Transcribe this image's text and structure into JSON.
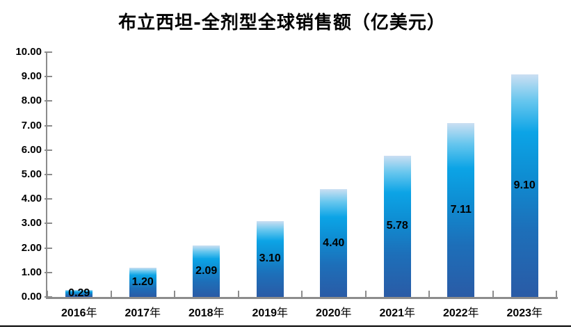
{
  "chart_data": {
    "type": "bar",
    "title": "布立西坦-全剂型全球销售额（亿美元）",
    "categories": [
      "2016年",
      "2017年",
      "2018年",
      "2019年",
      "2020年",
      "2021年",
      "2022年",
      "2023年"
    ],
    "values": [
      0.29,
      1.2,
      2.09,
      3.1,
      4.4,
      5.78,
      7.11,
      9.1
    ],
    "value_labels": [
      "0.29",
      "1.20",
      "2.09",
      "3.10",
      "4.40",
      "5.78",
      "7.11",
      "9.10"
    ],
    "xlabel": "",
    "ylabel": "",
    "y_axis": {
      "min": 0,
      "max": 10,
      "step": 1,
      "tick_labels": [
        "0.00",
        "1.00",
        "2.00",
        "3.00",
        "4.00",
        "5.00",
        "6.00",
        "7.00",
        "8.00",
        "9.00",
        "10.00"
      ]
    },
    "grid": false,
    "legend": "none",
    "colors": {
      "axis": "#8c8c8c",
      "text": "#000000",
      "bottom_rule": "#000000",
      "background": "#ffffff"
    },
    "bar_gradient": [
      {
        "color": "#cbdff2",
        "pos": 0
      },
      {
        "color": "#66c6ee",
        "pos": 12
      },
      {
        "color": "#0ca4e6",
        "pos": 26
      },
      {
        "color": "#0e8ed3",
        "pos": 45
      },
      {
        "color": "#1d6fb9",
        "pos": 70
      },
      {
        "color": "#2a5ba6",
        "pos": 100
      }
    ]
  }
}
